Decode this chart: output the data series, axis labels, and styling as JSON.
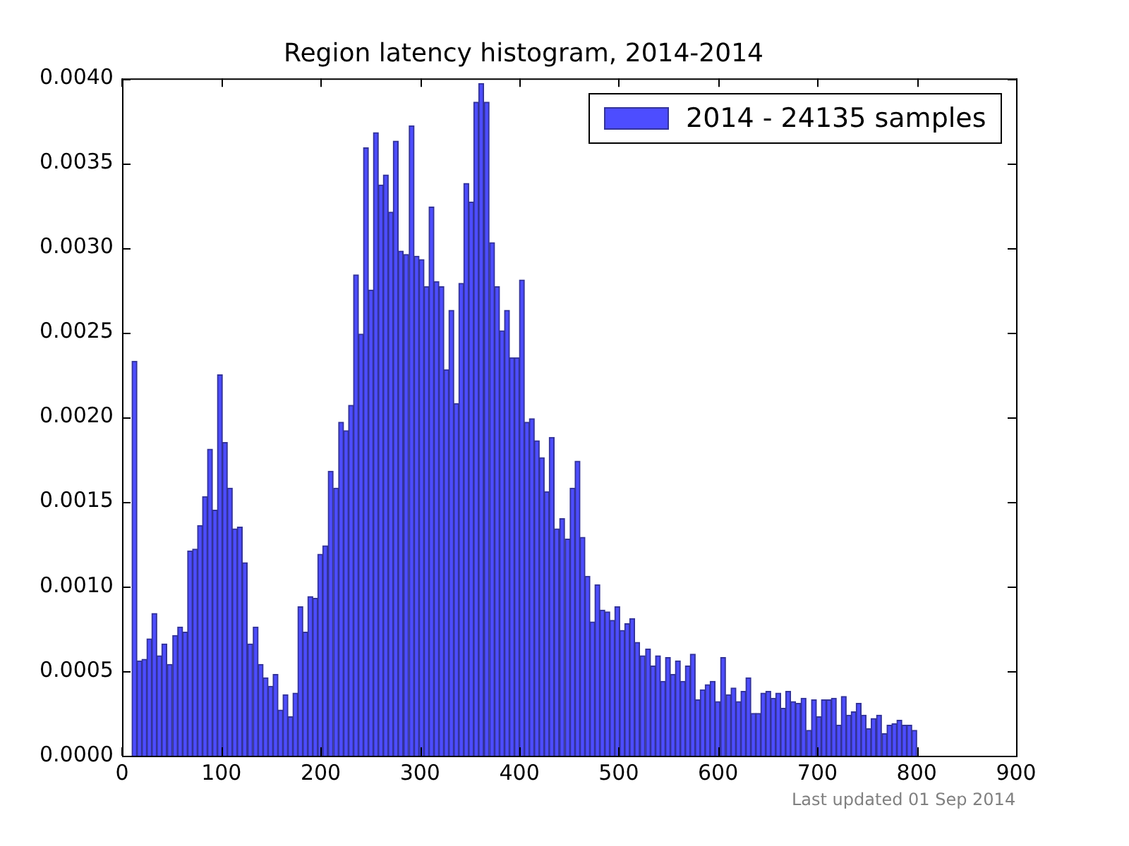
{
  "chart_data": {
    "type": "histogram",
    "title": "Region latency histogram, 2014-2014",
    "bins": [
      10,
      15,
      20,
      25,
      30,
      35,
      40,
      45,
      51,
      56,
      61,
      66,
      71,
      76,
      81,
      86,
      91,
      96,
      101,
      106,
      111,
      116,
      121,
      126,
      132,
      137,
      142,
      147,
      152,
      157,
      162,
      167,
      172,
      177,
      182,
      187,
      192,
      197,
      202,
      207,
      213,
      218,
      223,
      228,
      233,
      238,
      243,
      248,
      253,
      258,
      263,
      268,
      273,
      278,
      283,
      289,
      294,
      299,
      304,
      309,
      314,
      319,
      324,
      329,
      334,
      339,
      344,
      349,
      354,
      359,
      364,
      370,
      375,
      380,
      385,
      390,
      395,
      400,
      405,
      410,
      415,
      420,
      425,
      430,
      435,
      440,
      446,
      451,
      456,
      461,
      466,
      471,
      476,
      481,
      486,
      491,
      496,
      501,
      506,
      511,
      516,
      521,
      527,
      532,
      537,
      542,
      547,
      552,
      557,
      562,
      567,
      572,
      577,
      582,
      587,
      592,
      597,
      602,
      608,
      613,
      618,
      623,
      628,
      633,
      638,
      643,
      648,
      653,
      658,
      663,
      668,
      673,
      678,
      683,
      689,
      694,
      699,
      704,
      709,
      714,
      719,
      724,
      729,
      734,
      739,
      744,
      749,
      754,
      759,
      765,
      770,
      775,
      780,
      785,
      790,
      795,
      800
    ],
    "series": [
      {
        "name": "2014 - 24135 samples",
        "color": "#4d4dff",
        "values": [
          0.00233,
          0.00056,
          0.00057,
          0.00069,
          0.00084,
          0.00059,
          0.00066,
          0.00054,
          0.00071,
          0.00076,
          0.00073,
          0.00121,
          0.00122,
          0.00136,
          0.00153,
          0.00181,
          0.00145,
          0.00225,
          0.00185,
          0.00158,
          0.00134,
          0.00135,
          0.00114,
          0.00066,
          0.00076,
          0.00054,
          0.00046,
          0.00041,
          0.00048,
          0.00027,
          0.00036,
          0.00023,
          0.00037,
          0.00088,
          0.00073,
          0.00094,
          0.00093,
          0.00119,
          0.00124,
          0.00168,
          0.00158,
          0.00197,
          0.00192,
          0.00207,
          0.00284,
          0.00249,
          0.00359,
          0.00275,
          0.00368,
          0.00337,
          0.00343,
          0.00321,
          0.00363,
          0.00298,
          0.00296,
          0.00372,
          0.00295,
          0.00293,
          0.00277,
          0.00324,
          0.0028,
          0.00277,
          0.00228,
          0.00263,
          0.00208,
          0.00279,
          0.00338,
          0.00327,
          0.00386,
          0.00397,
          0.00386,
          0.00303,
          0.00277,
          0.00251,
          0.00263,
          0.00235,
          0.00235,
          0.00281,
          0.00197,
          0.00199,
          0.00186,
          0.00176,
          0.00156,
          0.00188,
          0.00134,
          0.0014,
          0.00128,
          0.00158,
          0.00174,
          0.00129,
          0.00106,
          0.00079,
          0.00101,
          0.00086,
          0.00085,
          0.0008,
          0.00088,
          0.00074,
          0.00078,
          0.00081,
          0.00067,
          0.00059,
          0.00063,
          0.00053,
          0.00059,
          0.00044,
          0.00058,
          0.00048,
          0.00056,
          0.00044,
          0.00053,
          0.0006,
          0.00033,
          0.00039,
          0.00042,
          0.00044,
          0.00032,
          0.00058,
          0.00036,
          0.0004,
          0.00032,
          0.00038,
          0.00046,
          0.00025,
          0.00025,
          0.00037,
          0.00038,
          0.00034,
          0.00037,
          0.00028,
          0.00038,
          0.00032,
          0.00031,
          0.00034,
          0.00015,
          0.00033,
          0.00023,
          0.00033,
          0.00033,
          0.00034,
          0.00018,
          0.00035,
          0.00024,
          0.00026,
          0.00031,
          0.00024,
          0.00016,
          0.00022,
          0.00024,
          0.00013,
          0.00018,
          0.00019,
          0.00021,
          0.00018,
          0.00018,
          0.00015
        ]
      }
    ],
    "xlim": [
      0,
      900
    ],
    "xticks": [
      0,
      100,
      200,
      300,
      400,
      500,
      600,
      700,
      800,
      900
    ],
    "ylim": [
      0,
      0.004
    ],
    "yticks": [
      {
        "value": 0,
        "label": "0.0000"
      },
      {
        "value": 0.0005,
        "label": "0.0005"
      },
      {
        "value": 0.001,
        "label": "0.0010"
      },
      {
        "value": 0.0015,
        "label": "0.0015"
      },
      {
        "value": 0.002,
        "label": "0.0020"
      },
      {
        "value": 0.0025,
        "label": "0.0025"
      },
      {
        "value": 0.003,
        "label": "0.0030"
      },
      {
        "value": 0.0035,
        "label": "0.0035"
      },
      {
        "value": 0.004,
        "label": "0.0040"
      }
    ],
    "legend": "top right",
    "annotations": [
      "Last updated 01 Sep 2014"
    ]
  }
}
